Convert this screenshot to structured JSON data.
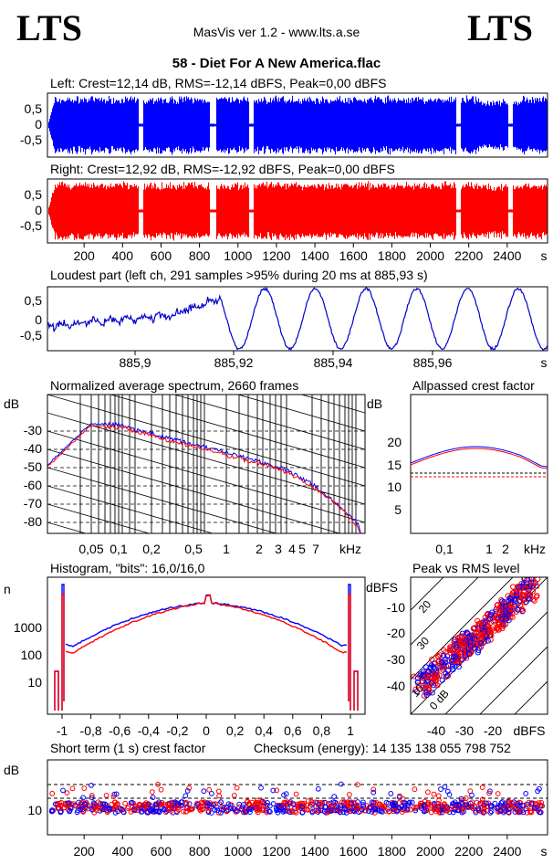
{
  "header": {
    "logo_left": "LTS",
    "logo_right": "LTS",
    "app": "MasVis ver 1.2 - www.lts.a.se",
    "track": "58 - Diet For A New America.flac"
  },
  "colors": {
    "left": "#0000ff",
    "right": "#ff0000"
  },
  "chart_data": [
    {
      "id": "left",
      "type": "area",
      "title": "Left: Crest=12,14 dB, RMS=-12,14 dBFS, Peak=0,00 dBFS",
      "yticks": [
        "0,5",
        "0",
        "-0,5"
      ],
      "ylim": [
        -1,
        1
      ],
      "xlim": [
        0,
        2600
      ]
    },
    {
      "id": "right",
      "type": "area",
      "title": "Right: Crest=12,92 dB, RMS=-12,92 dBFS, Peak=0,00 dBFS",
      "yticks": [
        "0,5",
        "0",
        "-0,5"
      ],
      "ylim": [
        -1,
        1
      ],
      "xlim": [
        0,
        2600
      ],
      "xticks": [
        "200",
        "400",
        "600",
        "800",
        "1000",
        "1200",
        "1400",
        "1600",
        "1800",
        "2000",
        "2200",
        "2400"
      ],
      "xunit": "s"
    },
    {
      "id": "loudest",
      "type": "line",
      "title": "Loudest part (left  ch, 291 samples >95% during 20 ms at 885,93 s)",
      "yticks": [
        "0,5",
        "0",
        "-0,5"
      ],
      "xticks": [
        "885,9",
        "885,92",
        "885,94",
        "885,96"
      ],
      "xunit": "s"
    },
    {
      "id": "spectrum",
      "type": "line",
      "title": "Normalized average spectrum, 2660 frames",
      "ylabel": "dB",
      "yticks": [
        "-30",
        "-40",
        "-50",
        "-60",
        "-70",
        "-80"
      ],
      "xticks": [
        "0,05",
        "0,1",
        "0,2",
        "0,5",
        "1",
        "2",
        "3",
        "4",
        "5",
        "7"
      ],
      "xunit": "kHz"
    },
    {
      "id": "allpass",
      "type": "line",
      "title": "Allpassed crest factor",
      "ylabel": "dB",
      "yticks": [
        "20",
        "15",
        "10",
        "5"
      ],
      "xticks": [
        "0,1",
        "1",
        "2"
      ],
      "xunit": "kHz"
    },
    {
      "id": "histogram",
      "type": "line",
      "title": "Histogram, \"bits\": 16,0/16,0",
      "ylabel": "n",
      "yticks": [
        "1000",
        "100",
        "10"
      ],
      "xticks": [
        "-1",
        "-0,8",
        "-0,6",
        "-0,4",
        "-0,2",
        "0",
        "0,2",
        "0,4",
        "0,6",
        "0,8",
        "1"
      ]
    },
    {
      "id": "peakrms",
      "type": "scatter",
      "title": "Peak vs RMS level",
      "ylabel": "dBFS",
      "yticks": [
        "-10",
        "-20",
        "-30",
        "-40"
      ],
      "xticks": [
        "-40",
        "-30",
        "-20"
      ],
      "xunit": "dBFS",
      "diag_labels": [
        "20",
        "10",
        "30",
        "0 dB"
      ]
    },
    {
      "id": "shortcrest",
      "type": "scatter",
      "title": "Short term (1 s) crest factor",
      "checksum": "Checksum (energy):  14 135 138 055 798 752",
      "ylabel": "dB",
      "yticks": [
        "10"
      ],
      "xticks": [
        "200",
        "400",
        "600",
        "800",
        "1000",
        "1200",
        "1400",
        "1600",
        "1800",
        "2000",
        "2200",
        "2400"
      ],
      "xunit": "s"
    }
  ]
}
